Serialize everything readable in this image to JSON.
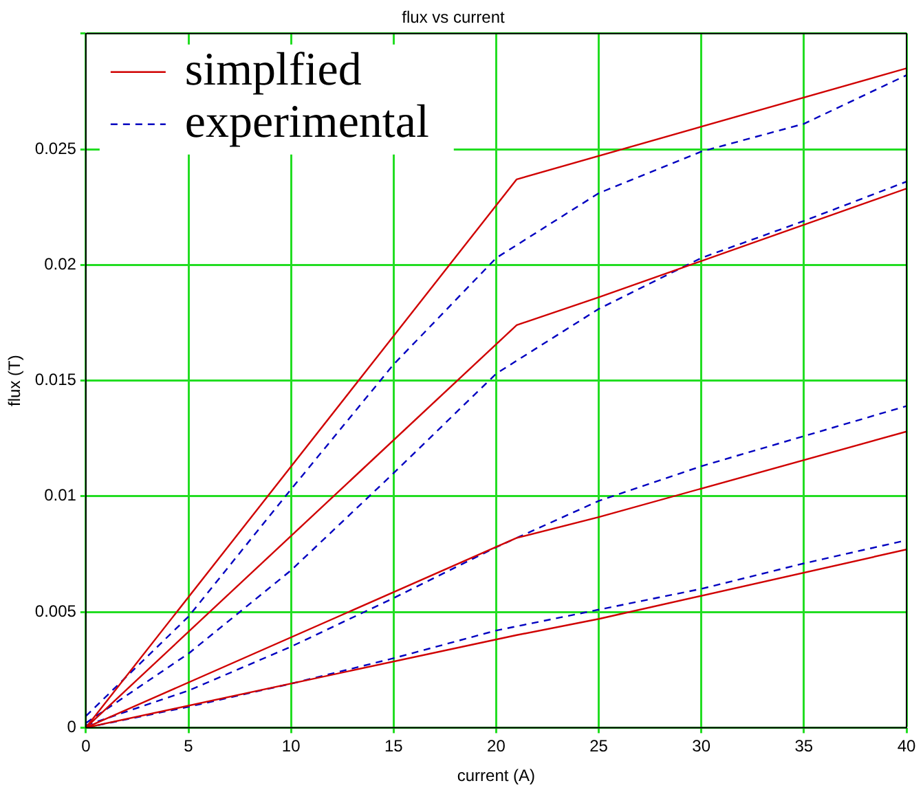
{
  "chart_data": {
    "type": "line",
    "title": "flux vs current",
    "xlabel": "current (A)",
    "ylabel": "flux (T)",
    "xlim": [
      0,
      40
    ],
    "xticks": [
      0,
      5,
      10,
      15,
      20,
      25,
      30,
      35,
      40
    ],
    "ylim": [
      0,
      0.03
    ],
    "yticks": [
      0,
      0.005,
      0.01,
      0.015,
      0.02,
      0.025,
      {
        "value": 0.03,
        "label": null
      }
    ],
    "grid": true,
    "legend": "top left",
    "marker": "none",
    "series": [
      {
        "name": "simplfied",
        "color": "#d00000",
        "line_style": "solid",
        "x": [
          0,
          21,
          40
        ],
        "values": [
          0,
          0.0237,
          0.0285
        ]
      },
      {
        "name": "experimental",
        "color": "#0000c0",
        "line_style": "dashed",
        "x": [
          0,
          5,
          10,
          15,
          20,
          25,
          30,
          35,
          40
        ],
        "values": [
          0.0005,
          0.0048,
          0.0103,
          0.0157,
          0.0203,
          0.0231,
          0.0249,
          0.0261,
          0.0282
        ]
      },
      {
        "color": "#d00000",
        "line_style": "solid",
        "x": [
          0,
          21,
          25,
          40
        ],
        "values": [
          0,
          0.0174,
          0.0186,
          0.0233
        ]
      },
      {
        "color": "#0000c0",
        "line_style": "dashed",
        "x": [
          0,
          5,
          10,
          15,
          20,
          25,
          30,
          35,
          40
        ],
        "values": [
          0.0002,
          0.0032,
          0.0068,
          0.011,
          0.0153,
          0.0181,
          0.0203,
          0.0219,
          0.0236
        ]
      },
      {
        "color": "#d00000",
        "line_style": "solid",
        "x": [
          0,
          21,
          25,
          40
        ],
        "values": [
          0,
          0.0082,
          0.0091,
          0.0128
        ]
      },
      {
        "color": "#0000c0",
        "line_style": "dashed",
        "x": [
          0,
          5,
          10,
          15,
          20,
          25,
          30,
          35,
          40
        ],
        "values": [
          0.0001,
          0.0016,
          0.0035,
          0.0056,
          0.0078,
          0.0098,
          0.0113,
          0.0126,
          0.0139
        ]
      },
      {
        "color": "#d00000",
        "line_style": "solid",
        "x": [
          0,
          21,
          25,
          40
        ],
        "values": [
          0,
          0.004,
          0.0047,
          0.0077
        ]
      },
      {
        "color": "#0000c0",
        "line_style": "dashed",
        "x": [
          0,
          5,
          10,
          15,
          20,
          25,
          30,
          35,
          40
        ],
        "values": [
          0,
          0.0009,
          0.0019,
          0.003,
          0.0042,
          0.0051,
          0.006,
          0.0071,
          0.0081
        ]
      }
    ]
  }
}
